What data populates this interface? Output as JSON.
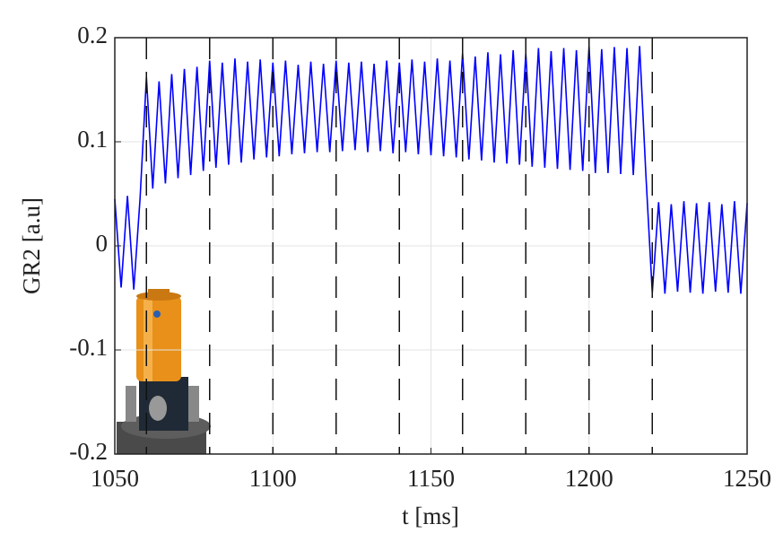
{
  "chart_data": {
    "type": "line",
    "xlabel": "t [ms]",
    "ylabel": "GR2 [a.u]",
    "xlim": [
      1050,
      1250
    ],
    "ylim": [
      -0.2,
      0.2
    ],
    "xticks": [
      1050,
      1100,
      1150,
      1200,
      1250
    ],
    "yticks": [
      0.2,
      0.1,
      0,
      -0.1,
      -0.2
    ],
    "grid": true,
    "vlines": [
      1060,
      1080,
      1100,
      1120,
      1140,
      1160,
      1180,
      1200,
      1220
    ],
    "x": [
      1050,
      1052,
      1054,
      1056,
      1058,
      1060,
      1062,
      1064,
      1066,
      1068,
      1070,
      1072,
      1074,
      1076,
      1078,
      1080,
      1082,
      1084,
      1086,
      1088,
      1090,
      1092,
      1094,
      1096,
      1098,
      1100,
      1102,
      1104,
      1106,
      1108,
      1110,
      1112,
      1114,
      1116,
      1118,
      1120,
      1122,
      1124,
      1126,
      1128,
      1130,
      1132,
      1134,
      1136,
      1138,
      1140,
      1142,
      1144,
      1146,
      1148,
      1150,
      1152,
      1154,
      1156,
      1158,
      1160,
      1162,
      1164,
      1166,
      1168,
      1170,
      1172,
      1174,
      1176,
      1178,
      1180,
      1182,
      1184,
      1186,
      1188,
      1190,
      1192,
      1194,
      1196,
      1198,
      1200,
      1202,
      1204,
      1206,
      1208,
      1210,
      1212,
      1214,
      1216,
      1218,
      1220,
      1222,
      1224,
      1226,
      1228,
      1230,
      1232,
      1234,
      1236,
      1238,
      1240,
      1242,
      1244,
      1246,
      1248,
      1250
    ],
    "series": [
      {
        "color": "#0000ff",
        "values": [
          0.045,
          -0.04,
          0.048,
          -0.042,
          0.046,
          0.162,
          0.055,
          0.158,
          0.06,
          0.165,
          0.065,
          0.17,
          0.068,
          0.172,
          0.072,
          0.178,
          0.075,
          0.176,
          0.078,
          0.18,
          0.08,
          0.177,
          0.083,
          0.179,
          0.085,
          0.176,
          0.086,
          0.178,
          0.088,
          0.174,
          0.089,
          0.177,
          0.09,
          0.175,
          0.09,
          0.178,
          0.091,
          0.176,
          0.092,
          0.177,
          0.09,
          0.175,
          0.091,
          0.178,
          0.089,
          0.176,
          0.09,
          0.179,
          0.088,
          0.177,
          0.087,
          0.18,
          0.086,
          0.178,
          0.085,
          0.185,
          0.083,
          0.182,
          0.082,
          0.186,
          0.08,
          0.184,
          0.079,
          0.188,
          0.078,
          0.185,
          0.076,
          0.19,
          0.075,
          0.187,
          0.074,
          0.19,
          0.073,
          0.188,
          0.072,
          0.192,
          0.07,
          0.189,
          0.07,
          0.191,
          0.069,
          0.19,
          0.068,
          0.192,
          0.067,
          -0.045,
          0.042,
          -0.046,
          0.04,
          -0.044,
          0.043,
          -0.045,
          0.041,
          -0.046,
          0.042,
          -0.044,
          0.04,
          -0.045,
          0.043,
          -0.046,
          0.041
        ]
      }
    ]
  }
}
